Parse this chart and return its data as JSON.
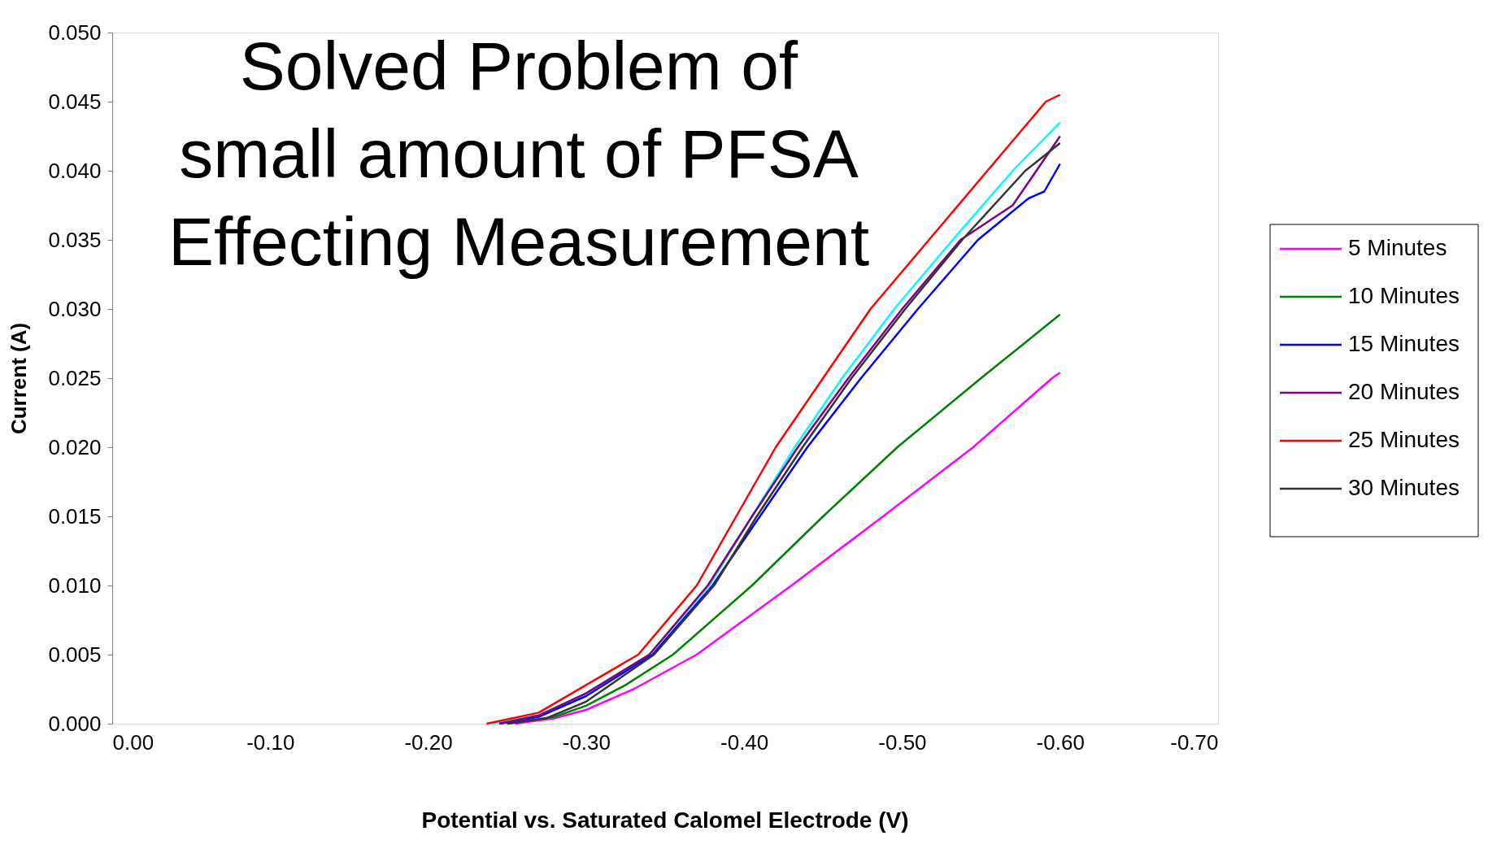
{
  "chart_data": {
    "type": "line",
    "title": "Solved Problem of\nsmall amount of PFSA\nEffecting Measurement",
    "xlabel": "Potential vs. Saturated Calomel Electrode (V)",
    "ylabel": "Current (A)",
    "xlim": [
      0,
      -0.7
    ],
    "ylim": [
      0,
      0.05
    ],
    "xticks": [
      {
        "value": 0,
        "label": "0.00"
      },
      {
        "value": -0.1,
        "label": "-0.10"
      },
      {
        "value": -0.2,
        "label": "-0.20"
      },
      {
        "value": -0.3,
        "label": "-0.30"
      },
      {
        "value": -0.4,
        "label": "-0.40"
      },
      {
        "value": -0.5,
        "label": "-0.50"
      },
      {
        "value": -0.6,
        "label": "-0.60"
      },
      {
        "value": -0.7,
        "label": "-0.70"
      }
    ],
    "yticks": [
      {
        "value": 0,
        "label": "0.000"
      },
      {
        "value": 0.005,
        "label": "0.005"
      },
      {
        "value": 0.01,
        "label": "0.010"
      },
      {
        "value": 0.015,
        "label": "0.015"
      },
      {
        "value": 0.02,
        "label": "0.020"
      },
      {
        "value": 0.025,
        "label": "0.025"
      },
      {
        "value": 0.03,
        "label": "0.030"
      },
      {
        "value": 0.035,
        "label": "0.035"
      },
      {
        "value": 0.04,
        "label": "0.040"
      },
      {
        "value": 0.045,
        "label": "0.045"
      },
      {
        "value": 0.05,
        "label": "0.050"
      }
    ],
    "grid": false,
    "legend": "right",
    "marker": "none",
    "line_style": "solid",
    "series": [
      {
        "color": "#00ffff",
        "x": [
          -0.24,
          -0.27,
          -0.3,
          -0.34,
          -0.378,
          -0.405,
          -0.432,
          -0.462,
          -0.495,
          -0.532,
          -0.57,
          -0.6
        ],
        "values": [
          0,
          0.0006,
          0.0022,
          0.005,
          0.01,
          0.015,
          0.02,
          0.025,
          0.03,
          0.035,
          0.04,
          0.0435
        ]
      },
      {
        "name": "5 Minutes",
        "color": "#ff00ff",
        "x": [
          -0.255,
          -0.28,
          -0.3,
          -0.33,
          -0.37,
          -0.43,
          -0.488,
          -0.545,
          -0.595,
          -0.6
        ],
        "values": [
          0,
          0.0004,
          0.001,
          0.0025,
          0.005,
          0.01,
          0.015,
          0.02,
          0.025,
          0.0254
        ]
      },
      {
        "name": "10 Minutes",
        "color": "#008000",
        "x": [
          -0.25,
          -0.28,
          -0.3,
          -0.325,
          -0.355,
          -0.405,
          -0.45,
          -0.497,
          -0.55,
          -0.6
        ],
        "values": [
          0,
          0.0005,
          0.0013,
          0.0028,
          0.005,
          0.01,
          0.015,
          0.02,
          0.025,
          0.0296
        ]
      },
      {
        "name": "15 Minutes",
        "color": "#0000ff",
        "x": [
          -0.245,
          -0.27,
          -0.3,
          -0.342,
          -0.38,
          -0.41,
          -0.44,
          -0.474,
          -0.51,
          -0.548,
          -0.58,
          -0.59,
          -0.6
        ],
        "values": [
          0,
          0.0005,
          0.002,
          0.005,
          0.01,
          0.015,
          0.02,
          0.025,
          0.03,
          0.035,
          0.038,
          0.0385,
          0.0405
        ]
      },
      {
        "name": "20 Minutes",
        "color": "#800080",
        "x": [
          -0.245,
          -0.27,
          -0.3,
          -0.34,
          -0.377,
          -0.405,
          -0.434,
          -0.466,
          -0.5,
          -0.537,
          -0.57,
          -0.585,
          -0.6
        ],
        "values": [
          0,
          0.0006,
          0.0022,
          0.005,
          0.01,
          0.015,
          0.02,
          0.025,
          0.03,
          0.035,
          0.0375,
          0.04,
          0.0425
        ]
      },
      {
        "name": "25 Minutes",
        "color": "#ff0000",
        "x": [
          -0.237,
          -0.27,
          -0.3,
          -0.333,
          -0.37,
          -0.395,
          -0.42,
          -0.45,
          -0.48,
          -0.517,
          -0.554,
          -0.591,
          -0.6
        ],
        "values": [
          0,
          0.0008,
          0.0028,
          0.005,
          0.01,
          0.015,
          0.02,
          0.025,
          0.03,
          0.035,
          0.04,
          0.045,
          0.0455
        ]
      },
      {
        "name": "30 Minutes",
        "color": "#333333",
        "x": [
          -0.25,
          -0.275,
          -0.3,
          -0.343,
          -0.381,
          -0.408,
          -0.437,
          -0.468,
          -0.502,
          -0.538,
          -0.578,
          -0.6
        ],
        "values": [
          0,
          0.0004,
          0.0016,
          0.005,
          0.01,
          0.015,
          0.02,
          0.025,
          0.03,
          0.035,
          0.04,
          0.042
        ]
      }
    ]
  }
}
